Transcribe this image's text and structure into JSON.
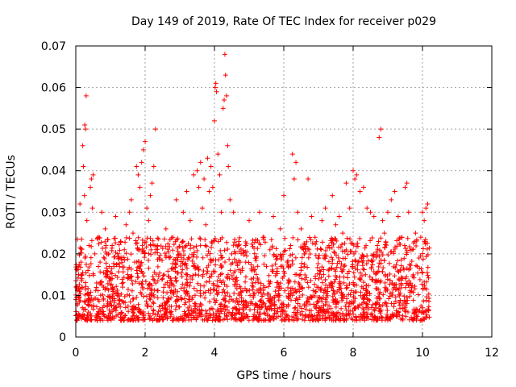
{
  "chart_data": {
    "type": "scatter",
    "title": "Day 149 of 2019, Rate Of TEC Index for receiver p029",
    "xlabel": "GPS time / hours",
    "ylabel": "ROTI / TECUs",
    "xlim": [
      0,
      12
    ],
    "ylim": [
      0,
      0.07
    ],
    "xticks": [
      0,
      2,
      4,
      6,
      8,
      10,
      12
    ],
    "yticks": [
      0,
      0.01,
      0.02,
      0.03,
      0.04,
      0.05,
      0.06,
      0.07
    ],
    "ytick_labels": [
      "0",
      "0.01",
      "0.02",
      "0.03",
      "0.04",
      "0.05",
      "0.06",
      "0.07"
    ],
    "grid": true,
    "marker": "+",
    "color": "#ff0000",
    "series": [
      {
        "name": "ROTI p029",
        "points": [
          [
            0.0,
            0.009
          ],
          [
            0.02,
            0.012
          ],
          [
            0.05,
            0.008
          ],
          [
            0.08,
            0.015
          ],
          [
            0.1,
            0.011
          ],
          [
            0.12,
            0.032
          ],
          [
            0.15,
            0.018
          ],
          [
            0.18,
            0.014
          ],
          [
            0.2,
            0.046
          ],
          [
            0.22,
            0.041
          ],
          [
            0.25,
            0.034
          ],
          [
            0.26,
            0.051
          ],
          [
            0.28,
            0.05
          ],
          [
            0.3,
            0.058
          ],
          [
            0.32,
            0.028
          ],
          [
            0.35,
            0.016
          ],
          [
            0.38,
            0.022
          ],
          [
            0.4,
            0.01
          ],
          [
            0.42,
            0.036
          ],
          [
            0.45,
            0.038
          ],
          [
            0.48,
            0.031
          ],
          [
            0.5,
            0.039
          ],
          [
            0.55,
            0.02
          ],
          [
            0.6,
            0.013
          ],
          [
            0.65,
            0.024
          ],
          [
            0.7,
            0.018
          ],
          [
            0.75,
            0.03
          ],
          [
            0.8,
            0.012
          ],
          [
            0.85,
            0.026
          ],
          [
            0.9,
            0.015
          ],
          [
            0.95,
            0.02
          ],
          [
            1.0,
            0.014
          ],
          [
            1.05,
            0.022
          ],
          [
            1.1,
            0.017
          ],
          [
            1.15,
            0.029
          ],
          [
            1.2,
            0.01
          ],
          [
            1.25,
            0.019
          ],
          [
            1.3,
            0.023
          ],
          [
            1.35,
            0.012
          ],
          [
            1.4,
            0.021
          ],
          [
            1.45,
            0.027
          ],
          [
            1.5,
            0.015
          ],
          [
            1.55,
            0.03
          ],
          [
            1.6,
            0.033
          ],
          [
            1.65,
            0.025
          ],
          [
            1.7,
            0.018
          ],
          [
            1.75,
            0.041
          ],
          [
            1.8,
            0.039
          ],
          [
            1.85,
            0.036
          ],
          [
            1.9,
            0.042
          ],
          [
            1.95,
            0.045
          ],
          [
            2.0,
            0.047
          ],
          [
            2.05,
            0.031
          ],
          [
            2.1,
            0.028
          ],
          [
            2.15,
            0.034
          ],
          [
            2.2,
            0.037
          ],
          [
            2.25,
            0.041
          ],
          [
            2.3,
            0.05
          ],
          [
            2.35,
            0.022
          ],
          [
            2.4,
            0.019
          ],
          [
            2.5,
            0.014
          ],
          [
            2.6,
            0.026
          ],
          [
            2.7,
            0.012
          ],
          [
            2.8,
            0.024
          ],
          [
            2.9,
            0.033
          ],
          [
            3.0,
            0.02
          ],
          [
            3.1,
            0.03
          ],
          [
            3.2,
            0.035
          ],
          [
            3.3,
            0.028
          ],
          [
            3.4,
            0.039
          ],
          [
            3.5,
            0.04
          ],
          [
            3.55,
            0.036
          ],
          [
            3.6,
            0.042
          ],
          [
            3.65,
            0.031
          ],
          [
            3.7,
            0.038
          ],
          [
            3.75,
            0.027
          ],
          [
            3.8,
            0.043
          ],
          [
            3.85,
            0.035
          ],
          [
            3.9,
            0.041
          ],
          [
            3.95,
            0.036
          ],
          [
            4.0,
            0.052
          ],
          [
            4.02,
            0.06
          ],
          [
            4.04,
            0.061
          ],
          [
            4.06,
            0.059
          ],
          [
            4.1,
            0.044
          ],
          [
            4.15,
            0.039
          ],
          [
            4.2,
            0.03
          ],
          [
            4.25,
            0.055
          ],
          [
            4.28,
            0.057
          ],
          [
            4.3,
            0.068
          ],
          [
            4.32,
            0.063
          ],
          [
            4.35,
            0.058
          ],
          [
            4.38,
            0.046
          ],
          [
            4.4,
            0.041
          ],
          [
            4.45,
            0.033
          ],
          [
            4.5,
            0.02
          ],
          [
            4.55,
            0.03
          ],
          [
            4.6,
            0.014
          ],
          [
            4.7,
            0.023
          ],
          [
            4.8,
            0.016
          ],
          [
            4.9,
            0.022
          ],
          [
            5.0,
            0.028
          ],
          [
            5.1,
            0.013
          ],
          [
            5.2,
            0.019
          ],
          [
            5.3,
            0.03
          ],
          [
            5.4,
            0.024
          ],
          [
            5.5,
            0.017
          ],
          [
            5.6,
            0.021
          ],
          [
            5.7,
            0.029
          ],
          [
            5.8,
            0.012
          ],
          [
            5.9,
            0.026
          ],
          [
            6.0,
            0.034
          ],
          [
            6.1,
            0.018
          ],
          [
            6.2,
            0.022
          ],
          [
            6.25,
            0.044
          ],
          [
            6.3,
            0.038
          ],
          [
            6.35,
            0.042
          ],
          [
            6.4,
            0.03
          ],
          [
            6.5,
            0.026
          ],
          [
            6.6,
            0.02
          ],
          [
            6.7,
            0.038
          ],
          [
            6.8,
            0.029
          ],
          [
            6.9,
            0.024
          ],
          [
            7.0,
            0.019
          ],
          [
            7.1,
            0.028
          ],
          [
            7.2,
            0.031
          ],
          [
            7.3,
            0.022
          ],
          [
            7.4,
            0.034
          ],
          [
            7.5,
            0.027
          ],
          [
            7.6,
            0.029
          ],
          [
            7.7,
            0.025
          ],
          [
            7.8,
            0.037
          ],
          [
            7.9,
            0.031
          ],
          [
            8.0,
            0.04
          ],
          [
            8.05,
            0.038
          ],
          [
            8.1,
            0.039
          ],
          [
            8.2,
            0.035
          ],
          [
            8.3,
            0.036
          ],
          [
            8.4,
            0.031
          ],
          [
            8.5,
            0.03
          ],
          [
            8.6,
            0.029
          ],
          [
            8.7,
            0.022
          ],
          [
            8.75,
            0.048
          ],
          [
            8.8,
            0.05
          ],
          [
            8.85,
            0.028
          ],
          [
            8.9,
            0.025
          ],
          [
            9.0,
            0.03
          ],
          [
            9.1,
            0.033
          ],
          [
            9.2,
            0.035
          ],
          [
            9.3,
            0.029
          ],
          [
            9.4,
            0.024
          ],
          [
            9.5,
            0.036
          ],
          [
            9.55,
            0.037
          ],
          [
            9.6,
            0.03
          ],
          [
            9.7,
            0.021
          ],
          [
            9.8,
            0.025
          ],
          [
            9.9,
            0.019
          ],
          [
            10.0,
            0.03
          ],
          [
            10.05,
            0.028
          ],
          [
            10.1,
            0.031
          ],
          [
            10.15,
            0.032
          ]
        ]
      }
    ],
    "bulk_band": {
      "note": "dense baseline of many points between these ROTI bounds across the observed time range",
      "x_range": [
        0.0,
        10.2
      ],
      "low": 0.004,
      "high": 0.024,
      "count": 2200
    }
  }
}
